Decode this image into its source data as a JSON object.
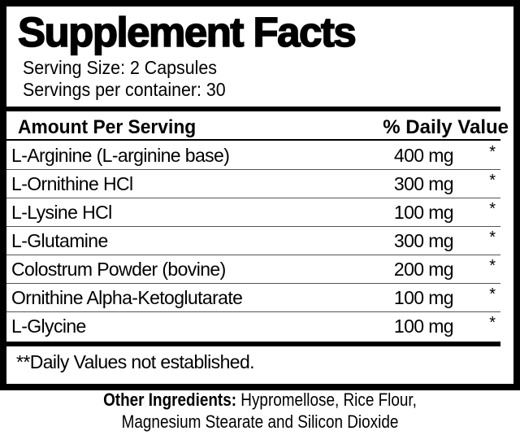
{
  "label": {
    "title": "Supplement Facts",
    "serving_size": "Serving Size: 2 Capsules",
    "servings_per_container": "Servings per container: 30",
    "header": {
      "amount": "Amount Per Serving",
      "daily_value": "% Daily Value"
    },
    "ingredients": [
      {
        "name": "L-Arginine (L-arginine base)",
        "amount": "400 mg",
        "dv": "*"
      },
      {
        "name": "L-Ornithine HCl",
        "amount": "300 mg",
        "dv": "*"
      },
      {
        "name": "L-Lysine HCl",
        "amount": "100 mg",
        "dv": "*"
      },
      {
        "name": "L-Glutamine",
        "amount": "300 mg",
        "dv": "*"
      },
      {
        "name": "Colostrum Powder (bovine)",
        "amount": "200 mg",
        "dv": "*"
      },
      {
        "name": "Ornithine Alpha-Ketoglutarate",
        "amount": "100 mg",
        "dv": "*"
      },
      {
        "name": "L-Glycine",
        "amount": "100 mg",
        "dv": "*"
      }
    ],
    "footnote": "**Daily Values not established."
  },
  "other_ingredients": {
    "label": "Other Ingredients:",
    "line1": " Hypromellose, Rice Flour,",
    "line2": "Magnesium Stearate and Silicon Dioxide"
  }
}
